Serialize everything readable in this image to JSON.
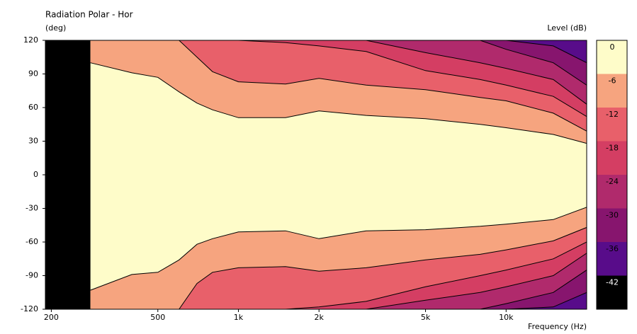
{
  "chart_data": {
    "type": "contour",
    "title": "Radiation Polar - Hor",
    "y_label": "(deg)",
    "colorbar_label": "Level (dB)",
    "x_label": "Frequency (Hz)",
    "xlog": true,
    "xlim": [
      190,
      20000
    ],
    "xticks": [
      200,
      500,
      {
        "value": 1000,
        "label": "1k"
      },
      {
        "value": 2000,
        "label": "2k"
      },
      {
        "value": 5000,
        "label": "5k"
      },
      {
        "value": 10000,
        "label": "10k"
      }
    ],
    "ylim": [
      -120,
      120
    ],
    "yticks": [
      120,
      90,
      60,
      30,
      0,
      -30,
      -60,
      -90,
      -120
    ],
    "x": [
      280,
      400,
      500,
      600,
      700,
      800,
      1000,
      1500,
      2000,
      3000,
      5000,
      8000,
      10000,
      15000,
      20000
    ],
    "contours": [
      {
        "level": -6,
        "upper": [
          100,
          91,
          87,
          74,
          64,
          58,
          51,
          51,
          57,
          53,
          50,
          45,
          42,
          36,
          28
        ],
        "lower": [
          -103,
          -89,
          -87,
          -76,
          -62,
          -57,
          -51,
          -50,
          -57,
          -50,
          -49,
          -46,
          -44,
          -40,
          -29
        ]
      },
      {
        "level": -12,
        "upper": [
          120,
          120,
          120,
          120,
          105,
          92,
          83,
          81,
          86,
          80,
          76,
          69,
          66,
          55,
          39
        ],
        "lower": [
          -120,
          -120,
          -120,
          -120,
          -97,
          -87,
          -83,
          -82,
          -86,
          -83,
          -76,
          -71,
          -67,
          -59,
          -47
        ]
      },
      {
        "level": -18,
        "upper": [
          120,
          120,
          120,
          120,
          120,
          120,
          120,
          118,
          115,
          110,
          93,
          85,
          80,
          70,
          52
        ],
        "lower": [
          -120,
          -120,
          -120,
          -120,
          -120,
          -120,
          -120,
          -120,
          -118,
          -113,
          -100,
          -90,
          -85,
          -75,
          -60
        ]
      },
      {
        "level": -24,
        "upper": [
          120,
          120,
          120,
          120,
          120,
          120,
          120,
          120,
          120,
          120,
          109,
          100,
          95,
          85,
          63
        ],
        "lower": [
          -120,
          -120,
          -120,
          -120,
          -120,
          -120,
          -120,
          -120,
          -120,
          -120,
          -112,
          -105,
          -100,
          -90,
          -70
        ]
      },
      {
        "level": -30,
        "upper": [
          120,
          120,
          120,
          120,
          120,
          120,
          120,
          120,
          120,
          120,
          120,
          120,
          112,
          100,
          80
        ],
        "lower": [
          -120,
          -120,
          -120,
          -120,
          -120,
          -120,
          -120,
          -120,
          -120,
          -120,
          -120,
          -120,
          -115,
          -105,
          -85
        ]
      },
      {
        "level": -36,
        "upper": [
          120,
          120,
          120,
          120,
          120,
          120,
          120,
          120,
          120,
          120,
          120,
          120,
          120,
          115,
          100
        ],
        "lower": [
          -120,
          -120,
          -120,
          -120,
          -120,
          -120,
          -120,
          -120,
          -120,
          -120,
          -120,
          -120,
          -120,
          -118,
          -105
        ]
      }
    ],
    "colorbar": {
      "levels": [
        0,
        -6,
        -12,
        -18,
        -24,
        -30,
        -36,
        -42
      ],
      "colors": [
        "#fefcc9",
        "#f6a47f",
        "#e8606a",
        "#d43e63",
        "#b02a6c",
        "#87156e",
        "#580c8a",
        "#000000"
      ]
    },
    "line_color": "#000000",
    "nodata_color": "#000000"
  }
}
